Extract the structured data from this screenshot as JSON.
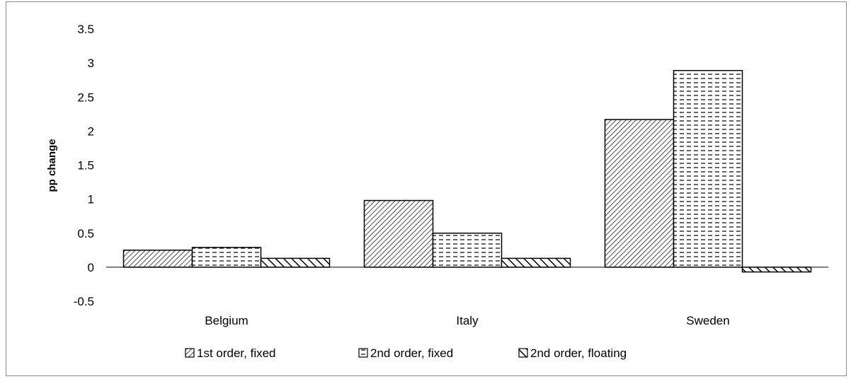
{
  "chart_data": {
    "type": "bar",
    "title": "",
    "xlabel": "",
    "ylabel": "pp change",
    "ylim": [
      -0.5,
      3.5
    ],
    "yticks": [
      "3.5",
      "3",
      "2.5",
      "2",
      "1.5",
      "1",
      "0.5",
      "0",
      "-0.5"
    ],
    "categories": [
      "Belgium",
      "Italy",
      "Sweden"
    ],
    "series": [
      {
        "name": "1st order, fixed",
        "pattern": "diagonal-dense",
        "values": [
          0.25,
          0.98,
          2.17
        ]
      },
      {
        "name": "2nd order, fixed",
        "pattern": "dashed-horizontal",
        "values": [
          0.29,
          0.5,
          2.89
        ]
      },
      {
        "name": "2nd order, floating",
        "pattern": "diagonal-wide",
        "values": [
          0.13,
          0.13,
          -0.07
        ]
      }
    ],
    "grid": false,
    "legend_position": "bottom",
    "colors": {
      "stroke": "#000000",
      "background": "#ffffff",
      "frame": "#8c8c8c"
    }
  }
}
